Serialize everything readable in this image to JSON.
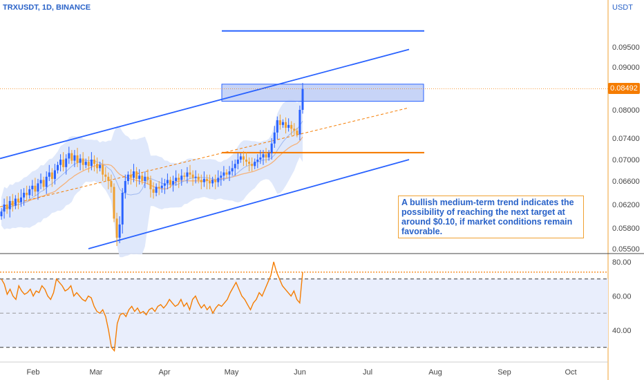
{
  "header": {
    "title": "TRXUSDT, 1D, BINANCE",
    "currency": "USDT"
  },
  "price_badge": "0.08492",
  "annotation": "A bullish medium-term trend indicates the possibility of reaching the next target at around $0.10, if market conditions remain favorable.",
  "colors": {
    "accent": "#2962ff",
    "orange": "#f57c00",
    "up": "#2962ff",
    "down": "#f0a030",
    "band": "#dce6fb"
  },
  "chart_data": [
    {
      "type": "candlestick",
      "title": "TRXUSDT, 1D, BINANCE",
      "y_axis_label": "USDT",
      "x_ticks": [
        "Feb",
        "Mar",
        "Apr",
        "May",
        "Jun",
        "Jul",
        "Aug",
        "Sep",
        "Oct"
      ],
      "y_ticks": [
        "0.09500",
        "0.09000",
        "0.08000",
        "0.07400",
        "0.07000",
        "0.06600",
        "0.06200",
        "0.05800",
        "0.05500"
      ],
      "last_price": 0.08492,
      "close_series": [
        0.0608,
        0.062,
        0.0612,
        0.0626,
        0.0618,
        0.063,
        0.0624,
        0.0632,
        0.064,
        0.0636,
        0.0646,
        0.0652,
        0.0642,
        0.0656,
        0.0662,
        0.065,
        0.0668,
        0.0676,
        0.0664,
        0.068,
        0.069,
        0.07,
        0.0686,
        0.0702,
        0.0712,
        0.0698,
        0.0708,
        0.0694,
        0.0702,
        0.069,
        0.0696,
        0.0688,
        0.07,
        0.0692,
        0.0684,
        0.069,
        0.0672,
        0.0668,
        0.066,
        0.065,
        0.0596,
        0.0566,
        0.0586,
        0.064,
        0.066,
        0.0672,
        0.0666,
        0.0678,
        0.0664,
        0.067,
        0.066,
        0.0668,
        0.0662,
        0.0646,
        0.064,
        0.065,
        0.0648,
        0.0652,
        0.0656,
        0.0662,
        0.0654,
        0.066,
        0.0666,
        0.0662,
        0.067,
        0.0668,
        0.0676,
        0.0672,
        0.0666,
        0.0668,
        0.0662,
        0.0658,
        0.0664,
        0.066,
        0.0656,
        0.0662,
        0.0658,
        0.0666,
        0.067,
        0.0676,
        0.0672,
        0.0678,
        0.0684,
        0.0692,
        0.07,
        0.0706,
        0.07,
        0.0696,
        0.0692,
        0.0688,
        0.0696,
        0.07,
        0.0704,
        0.071,
        0.0704,
        0.0712,
        0.073,
        0.0752,
        0.0778,
        0.0768,
        0.0774,
        0.0762,
        0.0768,
        0.076,
        0.0756,
        0.0748,
        0.08,
        0.0849
      ],
      "horizontal_levels": [
        0.099,
        0.0713
      ],
      "target_zone": [
        0.082,
        0.086
      ],
      "channel": {
        "upper": [
          [
            0,
            0.0702
          ],
          [
            592,
            0.0944
          ]
        ],
        "lower": [
          [
            128,
            0.055
          ],
          [
            592,
            0.07
          ]
        ]
      }
    },
    {
      "type": "line",
      "title": "",
      "y_ticks": [
        "80.00",
        "60.00",
        "40.00"
      ],
      "levels": [
        70,
        50,
        30
      ],
      "highlight_level": 74,
      "values": [
        70,
        67,
        61,
        64,
        60,
        58,
        66,
        63,
        61,
        62,
        64,
        60,
        63,
        62,
        66,
        64,
        60,
        58,
        62,
        70,
        68,
        66,
        63,
        64,
        66,
        60,
        62,
        60,
        58,
        57,
        60,
        59,
        54,
        51,
        50,
        52,
        48,
        40,
        30,
        28,
        44,
        49,
        50,
        48,
        52,
        54,
        51,
        53,
        50,
        51,
        49,
        52,
        53,
        51,
        54,
        55,
        53,
        55,
        58,
        56,
        54,
        55,
        58,
        54,
        56,
        52,
        58,
        60,
        56,
        53,
        55,
        52,
        54,
        50,
        53,
        55,
        54,
        56,
        58,
        62,
        65,
        68,
        64,
        60,
        58,
        55,
        52,
        56,
        58,
        62,
        60,
        64,
        68,
        72,
        80,
        74,
        70,
        66,
        64,
        62,
        60,
        63,
        58,
        56,
        74
      ]
    }
  ]
}
